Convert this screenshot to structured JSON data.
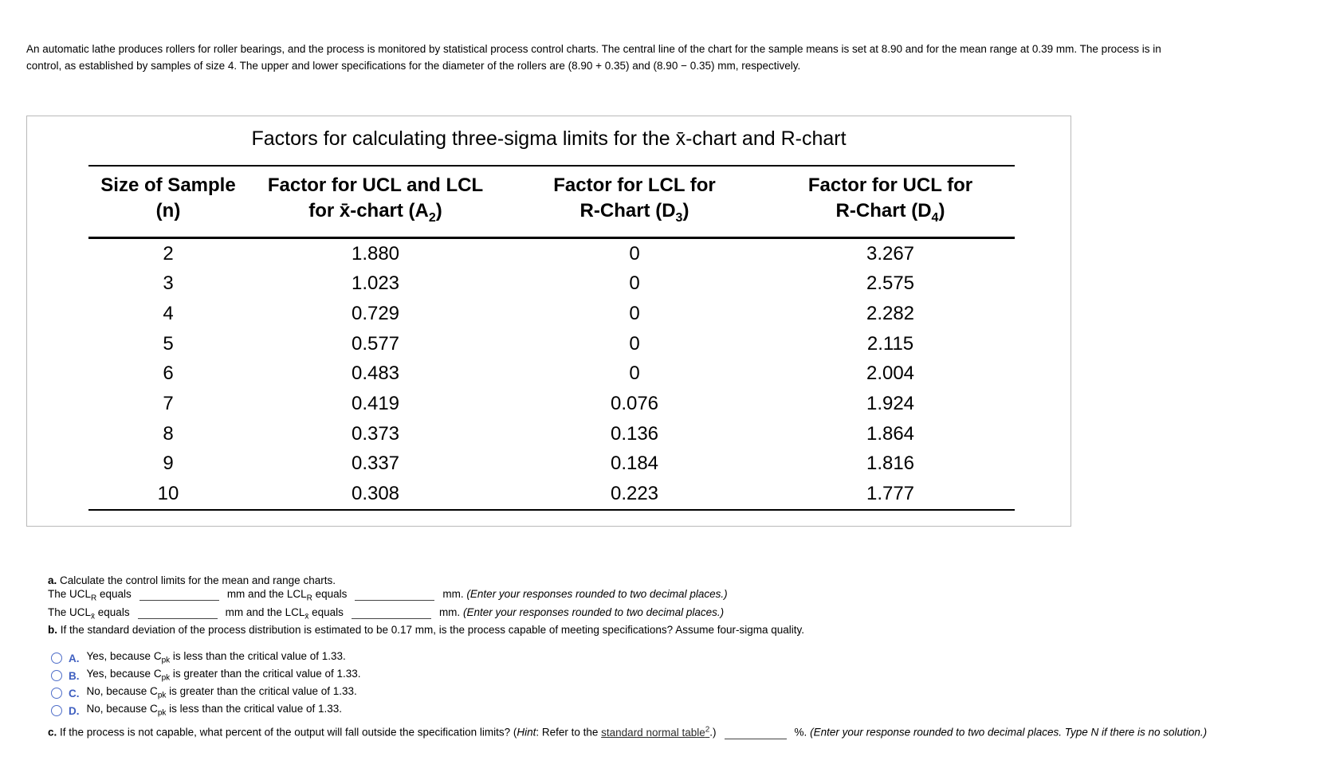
{
  "colors": {
    "option_blue": "#3f5fc0",
    "radio_border": "#4f6ec9",
    "panel_border": "#b9b9b9"
  },
  "problem": {
    "line1": "An automatic lathe produces rollers for roller bearings, and the process is monitored by statistical process control charts. The central line of the chart for the sample means is set at 8.90 and for the mean range at 0.39 mm. The process is in",
    "line2": "control, as established by samples of size 4. The upper and lower specifications for the diameter of the rollers are (8.90 + 0.35) and (8.90 − 0.35) mm, respectively."
  },
  "table": {
    "title": "Factors for calculating three-sigma limits for the x̄-chart and R-chart",
    "headers": [
      {
        "line1": "Size of Sample",
        "line2_pre": "(n)"
      },
      {
        "line1": "Factor for UCL and LCL",
        "line2_pre": "for x̄-chart (A",
        "line2_sub": "2",
        "line2_post": ")"
      },
      {
        "line1": "Factor for LCL for",
        "line2_pre": "R-Chart (D",
        "line2_sub": "3",
        "line2_post": ")"
      },
      {
        "line1": "Factor for UCL for",
        "line2_pre": "R-Chart (D",
        "line2_sub": "4",
        "line2_post": ")"
      }
    ],
    "rows": [
      [
        "2",
        "1.880",
        "0",
        "3.267"
      ],
      [
        "3",
        "1.023",
        "0",
        "2.575"
      ],
      [
        "4",
        "0.729",
        "0",
        "2.282"
      ],
      [
        "5",
        "0.577",
        "0",
        "2.115"
      ],
      [
        "6",
        "0.483",
        "0",
        "2.004"
      ],
      [
        "7",
        "0.419",
        "0.076",
        "1.924"
      ],
      [
        "8",
        "0.373",
        "0.136",
        "1.864"
      ],
      [
        "9",
        "0.337",
        "0.184",
        "1.816"
      ],
      [
        "10",
        "0.308",
        "0.223",
        "1.777"
      ]
    ]
  },
  "qa": {
    "label": "a.",
    "text": "Calculate the control limits for the mean and range charts.",
    "r_line": {
      "p1": "The UCL",
      "sub1": "R",
      "p2": " equals",
      "p3": "mm and the LCL",
      "sub2": "R",
      "p4": " equals",
      "p5": "mm.",
      "note": "(Enter your responses rounded to two decimal places.)"
    },
    "x_line": {
      "p1": "The UCL",
      "sub1": "x̄",
      "p2": " equals",
      "p3": "mm and the LCL",
      "sub2": "x̄",
      "p4": " equals",
      "p5": "mm.",
      "note": "(Enter your responses rounded to two decimal places.)"
    }
  },
  "qb": {
    "label": "b.",
    "text": "If the standard deviation of the process distribution is estimated to be 0.17 mm, is the process capable of meeting specifications? Assume four-sigma quality."
  },
  "options": [
    {
      "letter": "A.",
      "pre": "Yes, because C",
      "sub": "pk",
      "post": " is less than the critical value of 1.33."
    },
    {
      "letter": "B.",
      "pre": "Yes, because C",
      "sub": "pk",
      "post": " is greater than the critical value of 1.33."
    },
    {
      "letter": "C.",
      "pre": "No, because C",
      "sub": "pk",
      "post": " is greater than the critical value of 1.33."
    },
    {
      "letter": "D.",
      "pre": "No, because C",
      "sub": "pk",
      "post": " is less than the critical value of 1.33."
    }
  ],
  "qc": {
    "label": "c.",
    "p1": "If the process is not capable, what percent of the output will fall outside the specification limits? (",
    "hint": "Hint",
    "p2": ": Refer to the ",
    "link_text": "standard normal table",
    "sup": "2",
    "p3": ".)",
    "p4": "%.",
    "note": "(Enter your response rounded to two decimal places. Type N if there is no solution.)"
  }
}
